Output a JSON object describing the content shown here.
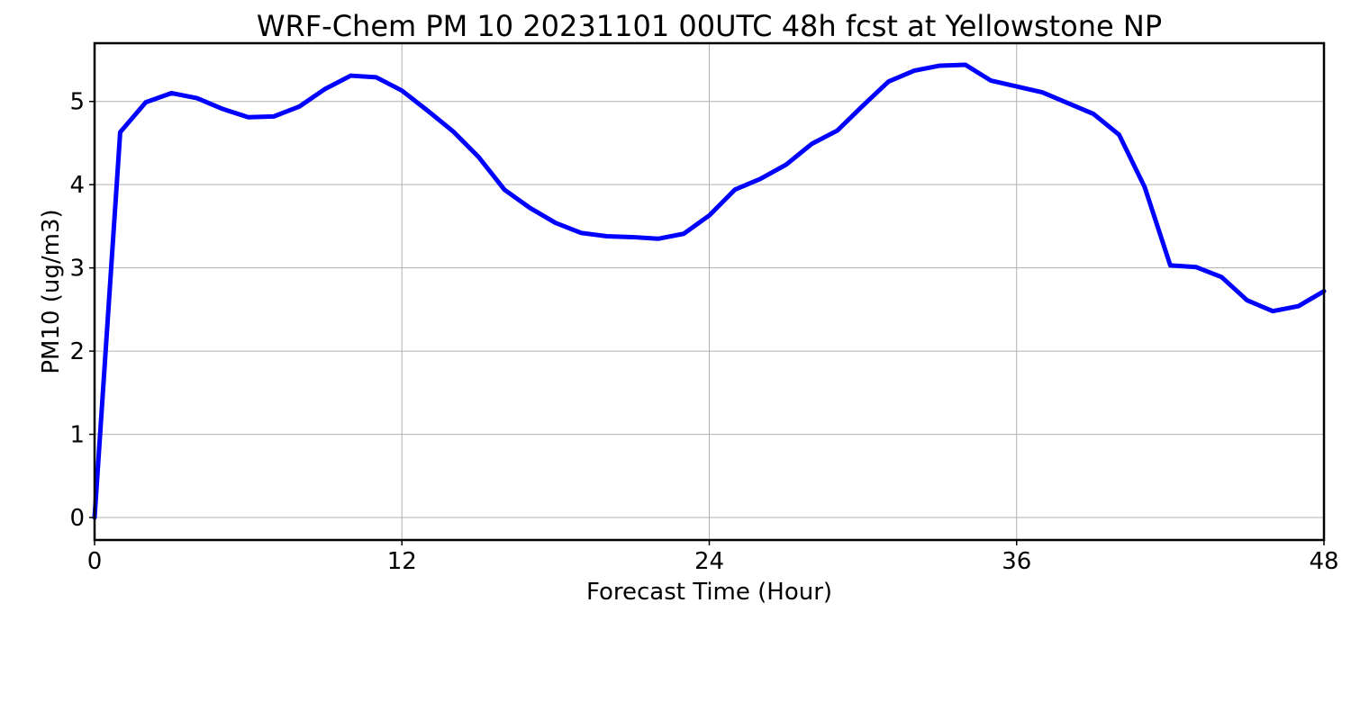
{
  "chart_data": {
    "type": "line",
    "title": "WRF-Chem PM 10  20231101 00UTC 48h fcst at Yellowstone NP",
    "xlabel": "Forecast Time (Hour)",
    "ylabel": "PM10  (ug/m3)",
    "xlim": [
      0,
      48
    ],
    "ylim": [
      -0.27,
      5.7
    ],
    "xticks": [
      0,
      12,
      24,
      36,
      48
    ],
    "yticks": [
      0,
      1,
      2,
      3,
      4,
      5
    ],
    "grid": true,
    "series": [
      {
        "color": "#0000ff",
        "x": [
          0,
          1,
          2,
          3,
          4,
          5,
          6,
          7,
          8,
          9,
          10,
          11,
          12,
          13,
          14,
          15,
          16,
          17,
          18,
          19,
          20,
          21,
          22,
          23,
          24,
          25,
          26,
          27,
          28,
          29,
          30,
          31,
          32,
          33,
          34,
          35,
          36,
          37,
          38,
          39,
          40,
          41,
          42,
          43,
          44,
          45,
          46,
          47,
          48
        ],
        "values": [
          0.0,
          4.63,
          4.99,
          5.1,
          5.04,
          4.91,
          4.81,
          4.82,
          4.94,
          5.15,
          5.31,
          5.29,
          5.13,
          4.89,
          4.64,
          4.33,
          3.94,
          3.72,
          3.54,
          3.42,
          3.38,
          3.37,
          3.35,
          3.41,
          3.63,
          3.94,
          4.07,
          4.24,
          4.49,
          4.65,
          4.95,
          5.24,
          5.37,
          5.43,
          5.44,
          5.25,
          5.18,
          5.11,
          4.98,
          4.85,
          4.6,
          3.97,
          3.03,
          3.01,
          2.89,
          2.61,
          2.48,
          2.54,
          2.72
        ]
      }
    ]
  }
}
